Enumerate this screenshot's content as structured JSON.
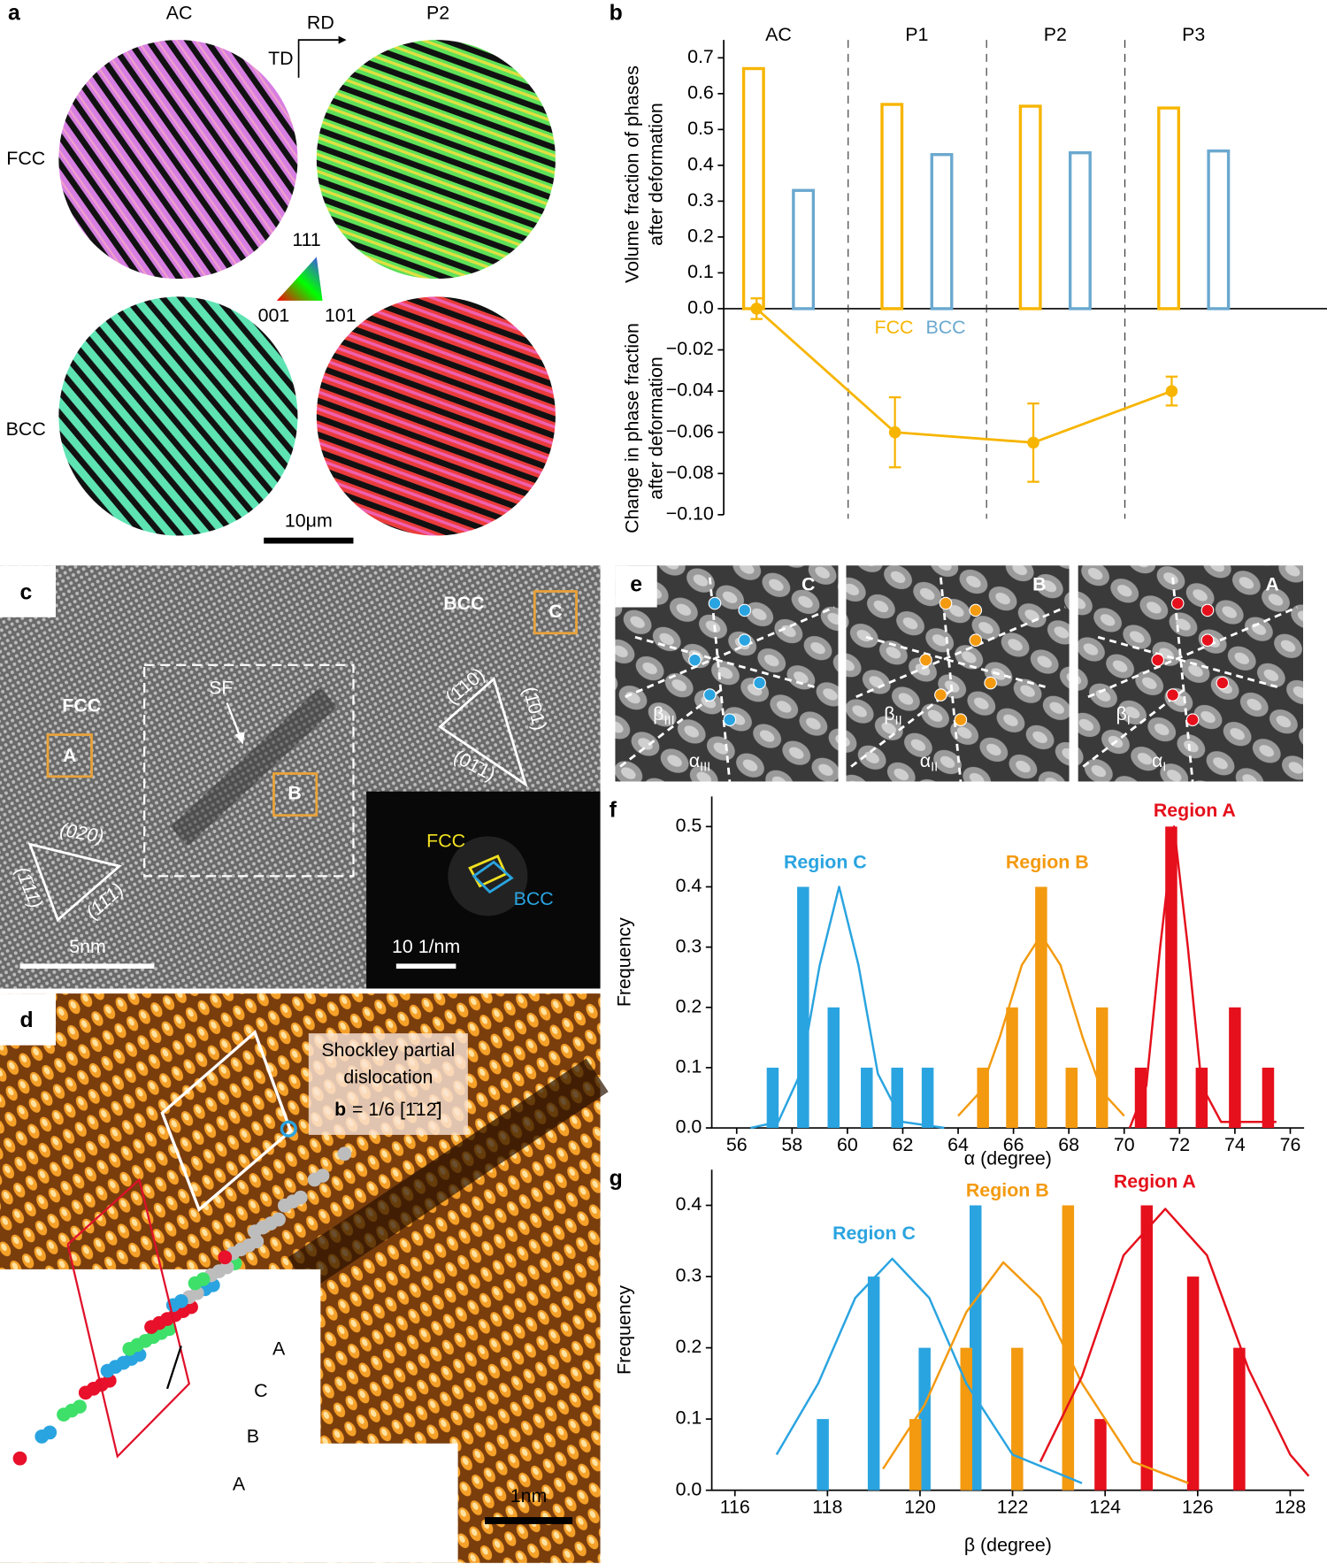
{
  "chart_data": [
    {
      "type": "bar",
      "categories": [
        "AC",
        "P1",
        "P2",
        "P3"
      ],
      "series": [
        {
          "name": "FCC",
          "color": "#f7b500",
          "values": [
            0.67,
            0.57,
            0.565,
            0.56
          ]
        },
        {
          "name": "BCC",
          "color": "#6aa8cf",
          "values": [
            0.33,
            0.43,
            0.435,
            0.44
          ]
        }
      ],
      "ylabel": [
        "Volume fraction of phases",
        "after deformation"
      ],
      "ylim": [
        0,
        0.75
      ],
      "yticks": [
        {
          "value": 0,
          "label": "0.0"
        },
        0.1,
        0.2,
        0.3,
        0.4,
        0.5,
        0.6,
        0.7
      ]
    },
    {
      "type": "line",
      "color": "#f7b500",
      "values": [
        0.0,
        -0.06,
        -0.065,
        -0.04
      ],
      "errors": [
        0.005,
        0.017,
        0.019,
        0.007
      ],
      "ylabel": [
        "Change in phase fraction",
        "after deformation"
      ],
      "ylim": [
        -0.1,
        0
      ],
      "yticks": [
        {
          "value": -0.02,
          "label": "−0.02"
        },
        {
          "value": -0.04,
          "label": "−0.04"
        },
        {
          "value": -0.06,
          "label": "−0.06"
        },
        {
          "value": -0.08,
          "label": "−0.08"
        },
        {
          "value": -0.1,
          "label": "−0.10"
        }
      ]
    },
    {
      "type": "histogram",
      "xlabel": "α (degree)",
      "ylabel": "Frequency",
      "xlim": [
        55.1,
        76.5
      ],
      "ylim": [
        0,
        0.55
      ],
      "xticks": [
        56,
        58,
        60,
        62,
        64,
        66,
        68,
        70,
        72,
        74,
        76
      ],
      "yticks": [
        {
          "value": 0,
          "label": "0.0"
        },
        0.1,
        0.2,
        0.3,
        0.4,
        0.5
      ],
      "series": [
        {
          "name": "Region C",
          "color": "#2aa4e0",
          "x": [
            57.3,
            58.4,
            59.5,
            60.7,
            61.8,
            62.9
          ],
          "values": [
            0.1,
            0.4,
            0.2,
            0.1,
            0.1,
            0.1
          ]
        },
        {
          "name": "Region B",
          "color": "#f39a10",
          "x": [
            64.9,
            65.95,
            67.0,
            68.1,
            69.2
          ],
          "values": [
            0.1,
            0.2,
            0.4,
            0.1,
            0.2
          ]
        },
        {
          "name": "Region A",
          "color": "#e5101c",
          "x": [
            70.6,
            71.7,
            72.8,
            74.0,
            75.2
          ],
          "values": [
            0.1,
            0.5,
            0.1,
            0.2,
            0.1
          ]
        }
      ],
      "fits": [
        {
          "color": "#2aa4e0",
          "x": [
            56.5,
            57.5,
            58.3,
            59.0,
            59.7,
            60.4,
            61.1,
            62.0,
            63.5
          ],
          "values": [
            0.0,
            0.01,
            0.09,
            0.27,
            0.4,
            0.27,
            0.09,
            0.01,
            0.0
          ]
        },
        {
          "color": "#f39a10",
          "x": [
            64.0,
            64.8,
            65.5,
            66.3,
            67.0,
            67.7,
            68.5,
            69.2,
            70.0
          ],
          "values": [
            0.02,
            0.06,
            0.15,
            0.27,
            0.32,
            0.27,
            0.15,
            0.06,
            0.02
          ]
        },
        {
          "color": "#e5101c",
          "x": [
            70.2,
            70.8,
            71.3,
            71.8,
            72.3,
            72.8,
            73.5,
            75.5
          ],
          "values": [
            0.0,
            0.07,
            0.3,
            0.5,
            0.3,
            0.07,
            0.01,
            0.01
          ]
        }
      ]
    },
    {
      "type": "histogram",
      "xlabel": "β (degree)",
      "ylabel": "Frequency",
      "xlim": [
        115.5,
        128.3
      ],
      "ylim": [
        0,
        0.45
      ],
      "xticks": [
        116,
        118,
        120,
        122,
        124,
        126,
        128
      ],
      "yticks": [
        {
          "value": 0,
          "label": "0.0"
        },
        0.1,
        0.2,
        0.3,
        0.4
      ],
      "series": [
        {
          "name": "Region C",
          "color": "#2aa4e0",
          "x": [
            117.9,
            119.0,
            120.1,
            121.2
          ],
          "values": [
            0.1,
            0.3,
            0.2,
            0.4
          ]
        },
        {
          "name": "Region B",
          "color": "#f39a10",
          "x": [
            119.9,
            121.0,
            122.1,
            123.2
          ],
          "values": [
            0.1,
            0.2,
            0.2,
            0.4
          ]
        },
        {
          "name": "Region A",
          "color": "#e5101c",
          "x": [
            123.9,
            124.9,
            125.9,
            126.9
          ],
          "values": [
            0.1,
            0.4,
            0.3,
            0.2
          ]
        }
      ],
      "fits": [
        {
          "color": "#2aa4e0",
          "x": [
            116.9,
            117.8,
            118.6,
            119.4,
            120.2,
            121.0,
            122.0,
            123.5
          ],
          "values": [
            0.05,
            0.15,
            0.27,
            0.325,
            0.27,
            0.15,
            0.05,
            0.01
          ]
        },
        {
          "color": "#f39a10",
          "x": [
            119.2,
            120.1,
            121.0,
            121.8,
            122.6,
            123.5,
            124.6,
            125.8
          ],
          "values": [
            0.03,
            0.12,
            0.25,
            0.32,
            0.27,
            0.15,
            0.04,
            0.01
          ]
        },
        {
          "color": "#e5101c",
          "x": [
            122.6,
            123.5,
            124.4,
            125.3,
            126.2,
            127.1,
            128.0,
            128.4
          ],
          "values": [
            0.04,
            0.16,
            0.33,
            0.395,
            0.33,
            0.17,
            0.05,
            0.02
          ]
        }
      ]
    }
  ],
  "figure": {
    "panel_labels": [
      "a",
      "b",
      "c",
      "d",
      "e",
      "f",
      "g"
    ],
    "a": {
      "columns": [
        "AC",
        "P2"
      ],
      "rows": [
        "FCC",
        "BCC"
      ],
      "axes": [
        "TD",
        "RD"
      ],
      "ipf": [
        "111",
        "001",
        "101"
      ],
      "scale": "10μm"
    },
    "c": {
      "phases": [
        "FCC",
        "BCC"
      ],
      "boxes": [
        "A",
        "B",
        "C"
      ],
      "sf": "SF",
      "bcc_planes": [
        "(1̄10)",
        "(1̄01)",
        "(01̄1)"
      ],
      "fcc_planes": [
        "(020)",
        "(1̄11)",
        "(11̄1)"
      ],
      "scale": "5nm",
      "fft": [
        "FCC",
        "BCC"
      ],
      "fft_scale": "10 1/nm"
    },
    "d": {
      "note": [
        "Shockley partial",
        "dislocation"
      ],
      "burgers": [
        "b",
        "= 1/6 [1̄12̄]"
      ],
      "scale": "1nm",
      "stacking": [
        "A",
        "C",
        "B",
        "A"
      ]
    },
    "e": {
      "regions": [
        "C",
        "B",
        "A"
      ],
      "beta": "β",
      "alpha": "α",
      "subs": [
        "III",
        "II",
        "I"
      ]
    }
  }
}
